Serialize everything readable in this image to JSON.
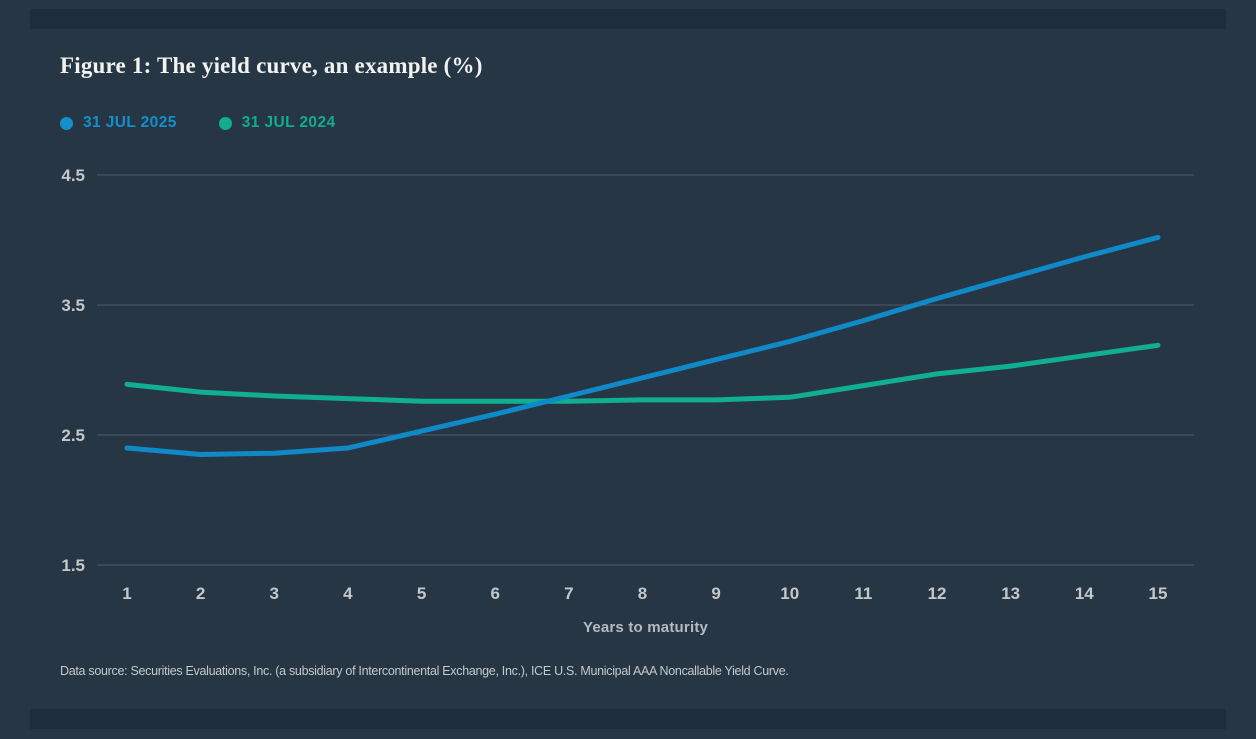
{
  "header": {
    "title": "Figure 1: The yield curve, an example (%)"
  },
  "legend": {
    "items": [
      {
        "label": "31 JUL 2025",
        "color": "#1390cc"
      },
      {
        "label": "31 JUL 2024",
        "color": "#10ad90"
      }
    ]
  },
  "chart_data": {
    "type": "line",
    "x": [
      1,
      2,
      3,
      4,
      5,
      6,
      7,
      8,
      9,
      10,
      11,
      12,
      13,
      14,
      15
    ],
    "series": [
      {
        "name": "31 JUL 2025",
        "color": "#1089c7",
        "values": [
          2.4,
          2.35,
          2.36,
          2.4,
          2.53,
          2.66,
          2.8,
          2.94,
          3.08,
          3.22,
          3.38,
          3.55,
          3.71,
          3.87,
          4.02
        ]
      },
      {
        "name": "31 JUL 2024",
        "color": "#10af92",
        "values": [
          2.89,
          2.83,
          2.8,
          2.78,
          2.76,
          2.76,
          2.76,
          2.77,
          2.77,
          2.79,
          2.88,
          2.97,
          3.03,
          3.11,
          3.19
        ]
      }
    ],
    "title": "Figure 1: The yield curve, an example (%)",
    "xlabel": "Years to maturity",
    "ylabel": "",
    "ylim": [
      1.5,
      4.5
    ],
    "yticks": [
      4.5,
      3.5,
      2.5,
      1.5
    ],
    "xticks": [
      1,
      2,
      3,
      4,
      5,
      6,
      7,
      8,
      9,
      10,
      11,
      12,
      13,
      14,
      15
    ],
    "grid": "horizontal",
    "legend_position": "top-left"
  },
  "footer": {
    "source": "Data source: Securities Evaluations, Inc. (a subsidiary of Intercontinental Exchange, Inc.), ICE U.S. Municipal AAA Noncallable Yield Curve."
  },
  "colors": {
    "background": "#263645",
    "edge_bar": "#1e2d3b",
    "gridline": "#4d5b67",
    "tick_label": "#c5c8ca",
    "axis_title": "#b5bbc0",
    "title_text": "#f2f3f1"
  }
}
